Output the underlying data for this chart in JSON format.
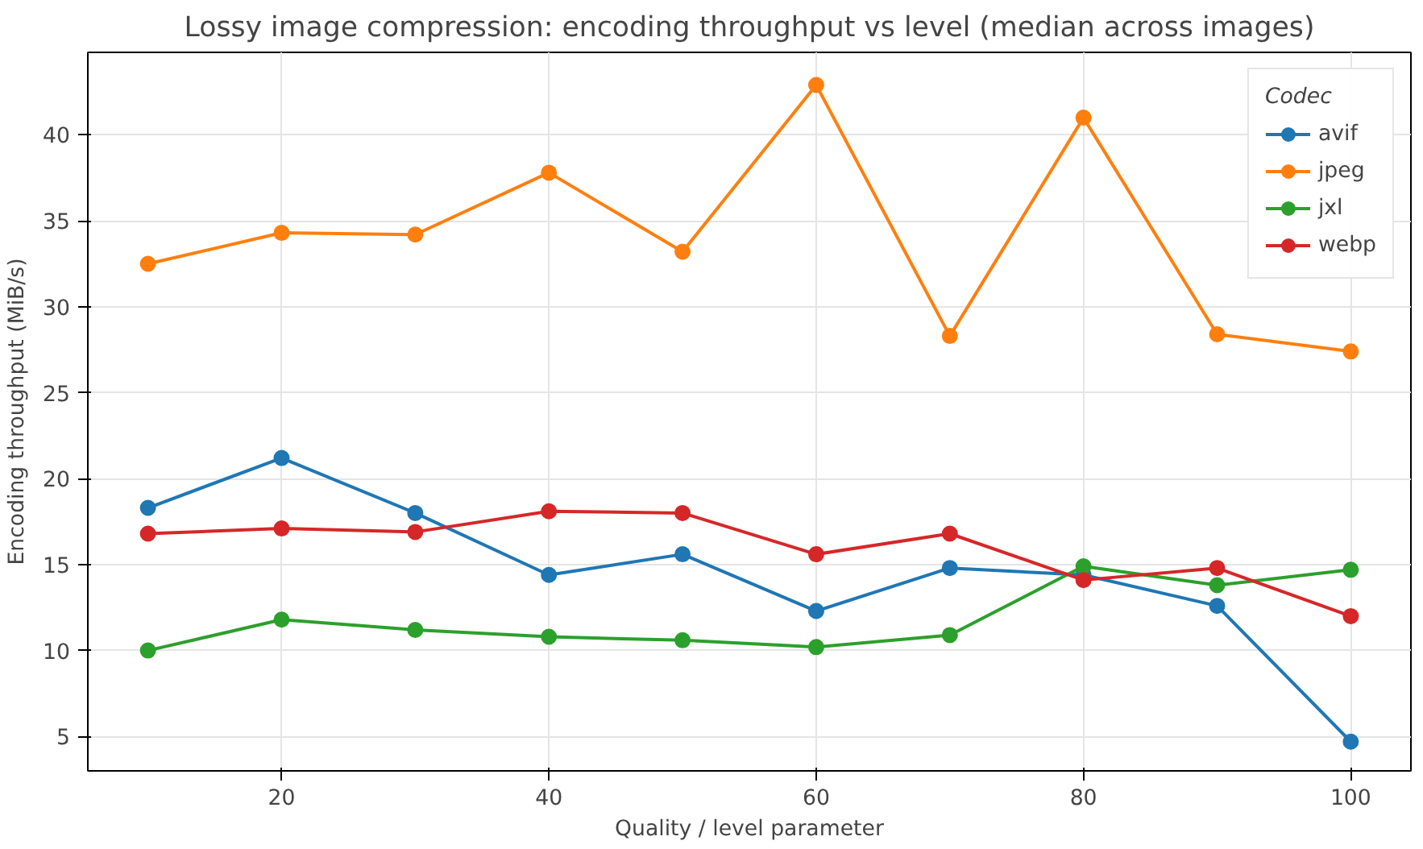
{
  "chart_data": {
    "type": "line",
    "title": "Lossy image compression: encoding throughput vs level (median across images)",
    "xlabel": "Quality / level parameter",
    "ylabel": "Encoding throughput (MiB/s)",
    "legend_title": "Codec",
    "x": [
      10,
      20,
      30,
      40,
      50,
      60,
      70,
      80,
      90,
      100
    ],
    "series": [
      {
        "name": "avif",
        "color": "#1f77b4",
        "values": [
          18.3,
          21.2,
          18.0,
          14.4,
          15.6,
          12.3,
          14.8,
          14.4,
          12.6,
          4.7
        ]
      },
      {
        "name": "jpeg",
        "color": "#ff7f0e",
        "values": [
          32.5,
          34.3,
          34.2,
          37.8,
          33.2,
          42.9,
          28.3,
          41.0,
          28.4,
          27.4
        ]
      },
      {
        "name": "jxl",
        "color": "#2ca02c",
        "values": [
          10.0,
          11.8,
          11.2,
          10.8,
          10.6,
          10.2,
          10.9,
          14.9,
          13.8,
          14.7
        ]
      },
      {
        "name": "webp",
        "color": "#d62728",
        "values": [
          16.8,
          17.1,
          16.9,
          18.1,
          18.0,
          15.6,
          16.8,
          14.1,
          14.8,
          12.0
        ]
      }
    ],
    "xlim": [
      5.5,
      104.5
    ],
    "ylim": [
      3.0,
      44.8
    ],
    "xticks": [
      20,
      40,
      60,
      80,
      100
    ],
    "yticks": [
      5,
      10,
      15,
      20,
      25,
      30,
      35,
      40
    ],
    "grid": true,
    "legend": "top right",
    "marker": "circle",
    "line_style": "solid"
  }
}
